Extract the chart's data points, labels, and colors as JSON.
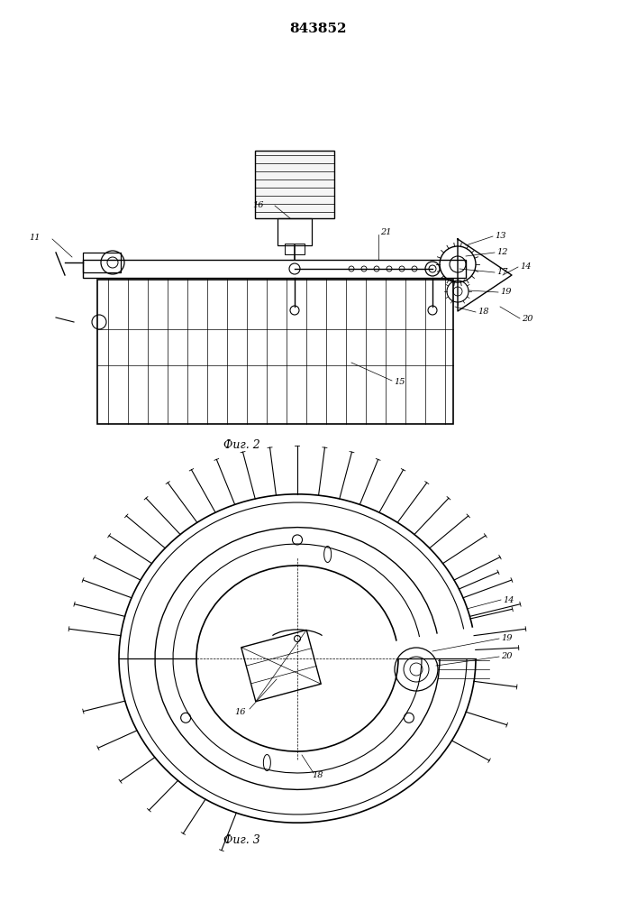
{
  "title": "843852",
  "fig2_label": "Фиг. 2",
  "fig3_label": "Фиг. 3",
  "bg_color": "#ffffff",
  "line_color": "#000000",
  "line_width": 0.8
}
